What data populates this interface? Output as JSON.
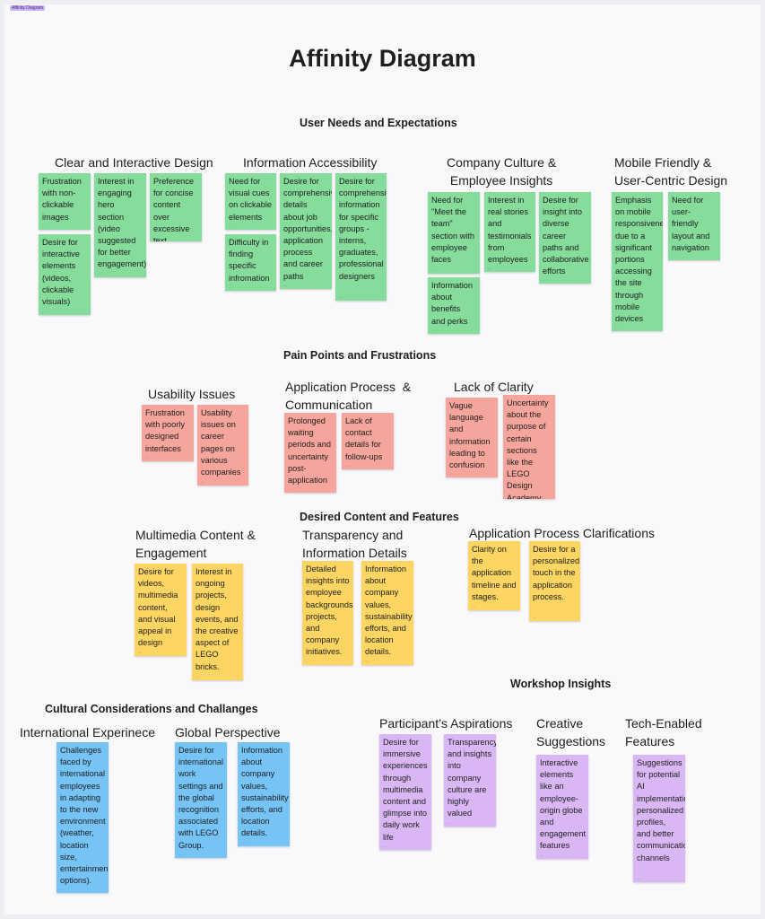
{
  "frame_label": "Affinity Diagram",
  "title": "Affinity Diagram",
  "sections": {
    "user_needs": "User Needs and Expectations",
    "pain_points": "Pain Points and Frustrations",
    "desired_content": "Desired Content and Features",
    "workshop": "Workshop Insights",
    "cultural": "Cultural Considerations and Challanges"
  },
  "clusters": {
    "clear_design": "Clear and Interactive Design",
    "info_access": "Information Accessibility",
    "company_culture": "Company Culture &\nEmployee Insights",
    "mobile": "Mobile Friendly &\nUser-Centric Design",
    "usability": "Usability Issues",
    "app_process_comm": "Application Process  &\nCommunication",
    "lack_clarity": "Lack of Clarity",
    "multimedia": "Multimedia Content &\nEngagement",
    "transparency": "Transparency and\nInformation Details",
    "app_clarifications": "Application Process Clarifications",
    "international": "International Experinece",
    "global": "Global Perspective",
    "aspirations": "Participant’s Aspirations",
    "creative": "Creative\nSuggestions",
    "tech": "Tech-Enabled\nFeatures"
  },
  "notes": {
    "g1": "Frustration with non-clickable images",
    "g2": "Desire for interactive elements (videos, clickable visuals)",
    "g3": "Interest in engaging hero section (video suggested for better engagement)",
    "g4": "Preference for concise content over excessive text",
    "g5": "Need for visual cues on clickable elements",
    "g6": "Difficulty in finding specific infromation",
    "g7": "Desire for comprehensive details about job opportunities, application process and career paths",
    "g8": "Desire for comprehensive information for specific groups - interns, graduates, professional designers",
    "g9": "Need for \"Meet the team\" section with employee faces",
    "g10": "Information about benefits and perks",
    "g11": "Interest in real stories and testimonials from employees",
    "g12": "Desire for insight into diverse career paths and collaborative efforts",
    "g13": "Emphasis on mobile responsiveness due to a significant portions accessing the site through mobile devices",
    "g14": "Need for user-friendly layout and navigation",
    "r1": "Frustration with poorly designed interfaces",
    "r2": "Usability issues on career pages on various companies",
    "r3": "Prolonged waiting periods and uncertainty post-application",
    "r4": "Lack of contact details for follow-ups",
    "r5": "Vague language and information leading to confusion",
    "r6": "Uncertainty about the purpose of certain sections like the LEGO Design Academy",
    "y1": "Desire for videos, multimedia content, and visual appeal in design",
    "y2": "Interest in ongoing projects, design events, and the creative aspect of LEGO bricks.",
    "y3": "Detailed insights into employee backgrounds, projects, and company initiatives.",
    "y4": "Information about company values, sustainability efforts, and location details.",
    "y5": "Clarity on the application timeline and stages.",
    "y6": "Desire for a personalized touch in the application process.",
    "b1": "Challenges faced by international employees in adapting to the new environment (weather, location size, entertainment options).",
    "b2": "Desire for international work settings and the global recognition associated with LEGO Group.",
    "b3": "Information about company values, sustainability efforts, and location details.",
    "p1": "Desire for immersive experiences through multimedia content and glimpse into daily work life",
    "p2": "Transparency and insights into company culture are highly valued",
    "p3": "Interactive elements like an employee-origin globe and engagement features",
    "p4": "Suggestions for potential AI implementation, personalized profiles, and better communication channels"
  },
  "colors": {
    "green": "#86dc9b",
    "red": "#f6a59c",
    "yellow": "#fdd562",
    "blue": "#76c3f6",
    "purple": "#d9b7f4"
  }
}
